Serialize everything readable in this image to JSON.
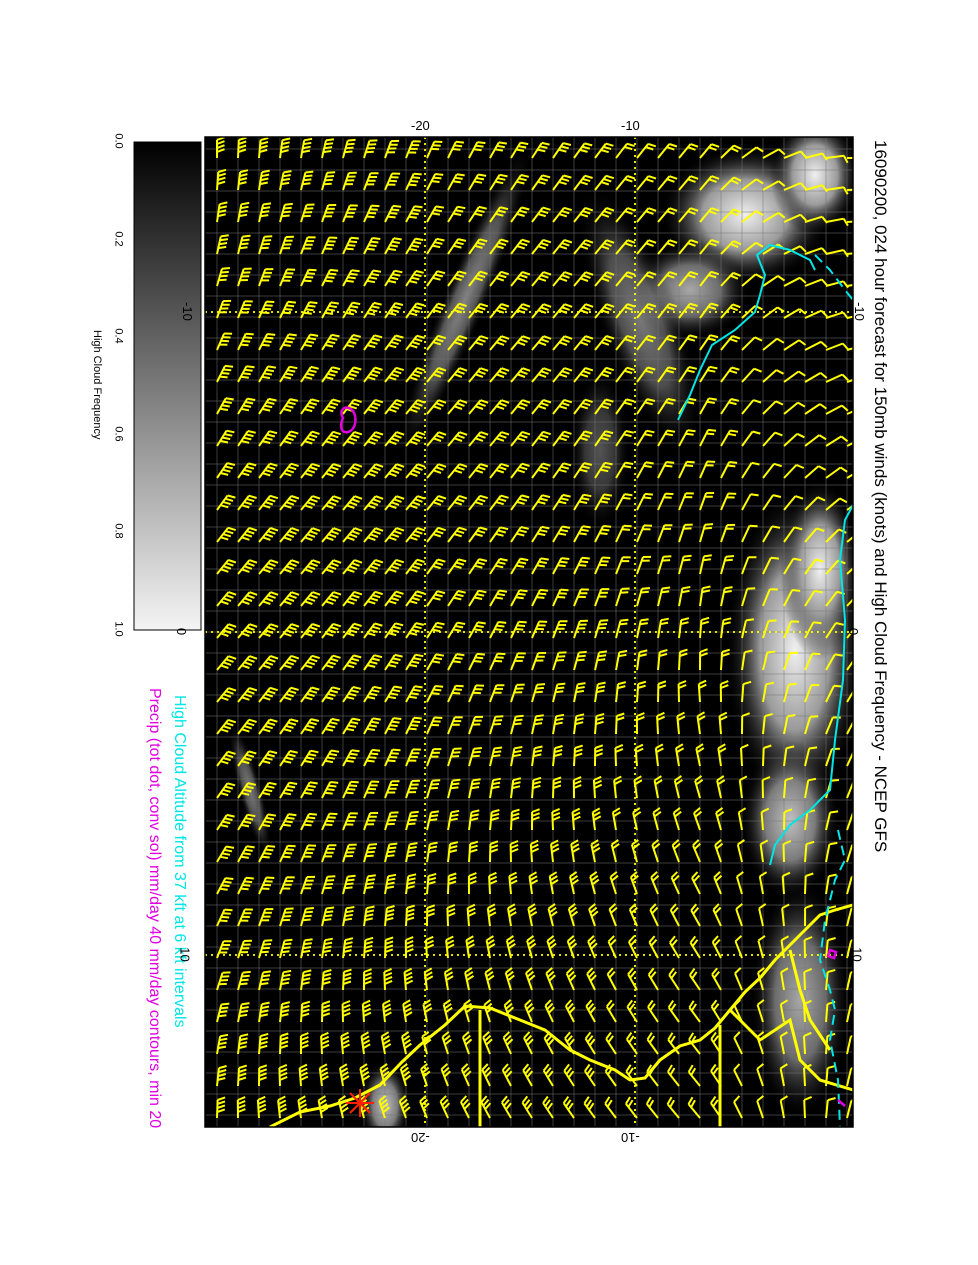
{
  "title": "16090200, 024 hour forecast for 150mb winds (knots) and High Cloud Frequency - NCEP GFS",
  "legend": {
    "cloud_altitude": "High Cloud Altitude from 37 kft at 6 kft intervals",
    "precip": "Precip (tot dot, conv sol) mm/day 40 mm/day contours, min 20"
  },
  "colorbar": {
    "title": "High Cloud Frequency",
    "ticks": [
      "0.0",
      "0.2",
      "0.4",
      "0.6",
      "0.8",
      "1.0"
    ]
  },
  "axes": {
    "top_ticks": [
      "-20",
      "-10"
    ],
    "bottom_ticks": [
      "-20",
      "-10"
    ],
    "left_ticks": [
      "-10",
      "0",
      "10"
    ],
    "right_ticks": [
      "-10",
      "0",
      "10"
    ]
  },
  "colors": {
    "background": "#000000",
    "wind_barbs": "#ffff00",
    "coastline": "#ffff00",
    "cloud_altitude_contour": "#00e5e5",
    "precip_contour": "#e000e0",
    "station_marker": "#ff2000"
  },
  "icons": {
    "station": "asterisk-marker-icon",
    "wind": "wind-barb-icon"
  }
}
